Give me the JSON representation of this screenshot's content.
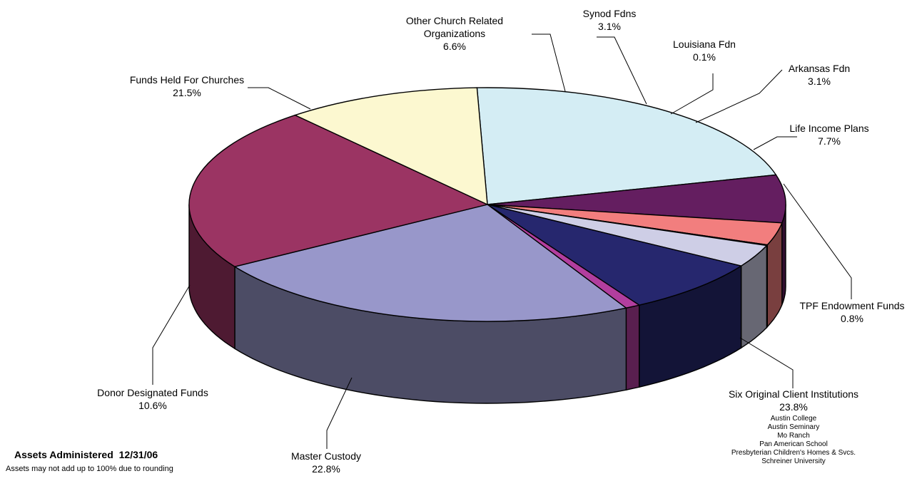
{
  "chart_data": {
    "type": "pie",
    "title": "",
    "slices": [
      {
        "label": [
          "Funds Held For Churches"
        ],
        "value": 21.5,
        "pct_label": "21.5%",
        "color": "#D4EDF4"
      },
      {
        "label": [
          "Other Church Related",
          "Organizations"
        ],
        "value": 6.6,
        "pct_label": "6.6%",
        "color": "#641E60"
      },
      {
        "label": [
          "Synod Fdns"
        ],
        "value": 3.1,
        "pct_label": "3.1%",
        "color": "#F27E7E"
      },
      {
        "label": [
          "Louisiana Fdn"
        ],
        "value": 0.1,
        "pct_label": "0.1%",
        "color": "#2E9E8E"
      },
      {
        "label": [
          "Arkansas Fdn"
        ],
        "value": 3.1,
        "pct_label": "3.1%",
        "color": "#CECEE6"
      },
      {
        "label": [
          "Life Income Plans"
        ],
        "value": 7.7,
        "pct_label": "7.7%",
        "color": "#26276E"
      },
      {
        "label": [
          "TPF Endowment Funds"
        ],
        "value": 0.8,
        "pct_label": "0.8%",
        "color": "#B23E9E"
      },
      {
        "label": [
          "Six Original Client Institutions"
        ],
        "value": 23.8,
        "pct_label": "23.8%",
        "color": "#9897CA",
        "sub_items": [
          "Austin College",
          "Austin Seminary",
          "Mo Ranch",
          "Pan American School",
          "Presbyterian Children's Homes & Svcs.",
          "Schreiner University"
        ]
      },
      {
        "label": [
          "Master Custody"
        ],
        "value": 22.8,
        "pct_label": "22.8%",
        "color": "#9B3463"
      },
      {
        "label": [
          "Donor Designated Funds"
        ],
        "value": 10.6,
        "pct_label": "10.6%",
        "color": "#FCF8D0"
      }
    ]
  },
  "footer": {
    "title": "Assets Administered",
    "date": "12/31/06",
    "note": "Assets may not add up to 100% due to rounding"
  }
}
